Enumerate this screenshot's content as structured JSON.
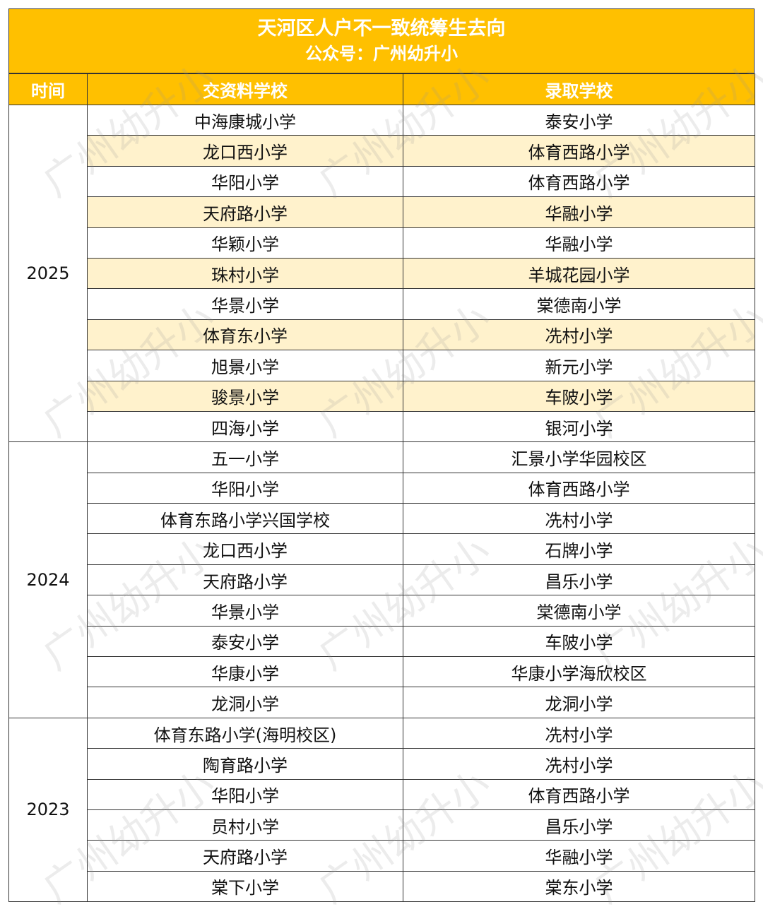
{
  "title": "天河区人户不一致统筹生去向",
  "subtitle": "公众号：广州幼升小",
  "headers": [
    "时间",
    "交资料学校",
    "录取学校"
  ],
  "watermark": "广州幼升小",
  "groups": [
    {
      "year": "2025",
      "rows": [
        {
          "from": "中海康城小学",
          "to": "泰安小学",
          "hl": false
        },
        {
          "from": "龙口西小学",
          "to": "体育西路小学",
          "hl": true
        },
        {
          "from": "华阳小学",
          "to": "体育西路小学",
          "hl": false
        },
        {
          "from": "天府路小学",
          "to": "华融小学",
          "hl": true
        },
        {
          "from": "华颖小学",
          "to": "华融小学",
          "hl": false
        },
        {
          "from": "珠村小学",
          "to": "羊城花园小学",
          "hl": true
        },
        {
          "from": "华景小学",
          "to": "棠德南小学",
          "hl": false
        },
        {
          "from": "体育东小学",
          "to": "冼村小学",
          "hl": true
        },
        {
          "from": "旭景小学",
          "to": "新元小学",
          "hl": false
        },
        {
          "from": "骏景小学",
          "to": "车陂小学",
          "hl": true
        },
        {
          "from": "四海小学",
          "to": "银河小学",
          "hl": false
        }
      ]
    },
    {
      "year": "2024",
      "rows": [
        {
          "from": "五一小学",
          "to": "汇景小学华园校区",
          "hl": false
        },
        {
          "from": "华阳小学",
          "to": "体育西路小学",
          "hl": false
        },
        {
          "from": "体育东路小学兴国学校",
          "to": "冼村小学",
          "hl": false
        },
        {
          "from": "龙口西小学",
          "to": "石牌小学",
          "hl": false
        },
        {
          "from": "天府路小学",
          "to": "昌乐小学",
          "hl": false
        },
        {
          "from": "华景小学",
          "to": "棠德南小学",
          "hl": false
        },
        {
          "from": "泰安小学",
          "to": "车陂小学",
          "hl": false
        },
        {
          "from": "华康小学",
          "to": "华康小学海欣校区",
          "hl": false
        },
        {
          "from": "龙洞小学",
          "to": "龙洞小学",
          "hl": false
        }
      ]
    },
    {
      "year": "2023",
      "rows": [
        {
          "from": "体育东路小学(海明校区)",
          "to": "冼村小学",
          "hl": false
        },
        {
          "from": "陶育路小学",
          "to": "冼村小学",
          "hl": false
        },
        {
          "from": "华阳小学",
          "to": "体育西路小学",
          "hl": false
        },
        {
          "from": "员村小学",
          "to": "昌乐小学",
          "hl": false
        },
        {
          "from": "天府路小学",
          "to": "华融小学",
          "hl": false
        },
        {
          "from": "棠下小学",
          "to": "棠东小学",
          "hl": false
        }
      ]
    }
  ],
  "colors": {
    "header": "#FFC000",
    "highlight": "#FFF2CC",
    "border": "#333333"
  }
}
